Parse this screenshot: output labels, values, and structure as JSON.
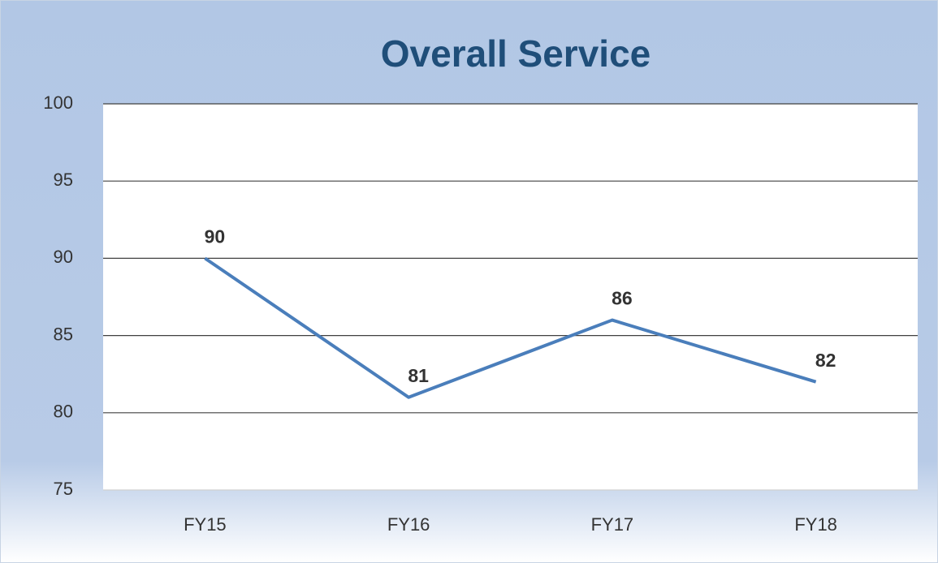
{
  "chart_data": {
    "type": "line",
    "title": "Overall Service",
    "categories": [
      "FY15",
      "FY16",
      "FY17",
      "FY18"
    ],
    "series": [
      {
        "name": "Overall Service",
        "color": "#4a7ebb",
        "values": [
          90,
          81,
          86,
          82
        ]
      }
    ],
    "ylim": [
      75,
      100
    ],
    "yticks": [
      75,
      80,
      85,
      90,
      95,
      100
    ],
    "grid": true
  }
}
